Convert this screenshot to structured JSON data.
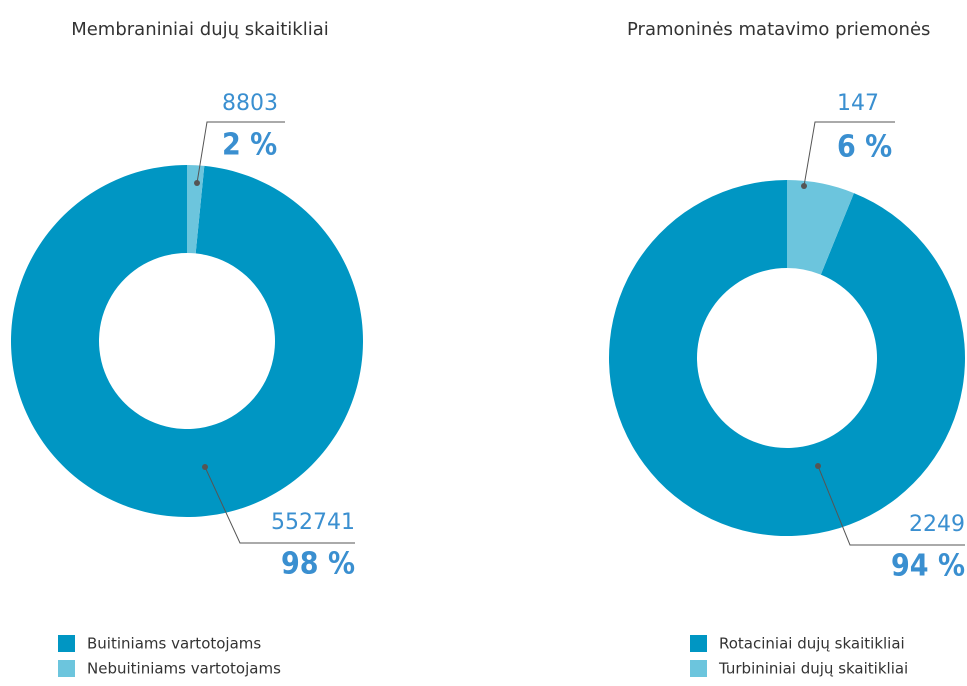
{
  "chart_data": [
    {
      "type": "pie",
      "donut": true,
      "title": "Membraniniai dujų skaitikliai",
      "categories": [
        "Buitiniams vartotojams",
        "Nebuitiniams vartotojams"
      ],
      "values": [
        552741,
        8803
      ],
      "percent_labels": [
        "98 %",
        "2 %"
      ],
      "colors": [
        "#0096c3",
        "#6cc5dd"
      ]
    },
    {
      "type": "pie",
      "donut": true,
      "title": "Pramoninės matavimo priemonės",
      "categories": [
        "Rotaciniai dujų skaitikliai",
        "Turbininiai dujų skaitikliai"
      ],
      "values": [
        2249,
        147
      ],
      "percent_labels": [
        "94 %",
        "6 %"
      ],
      "colors": [
        "#0096c3",
        "#6cc5dd"
      ]
    }
  ]
}
